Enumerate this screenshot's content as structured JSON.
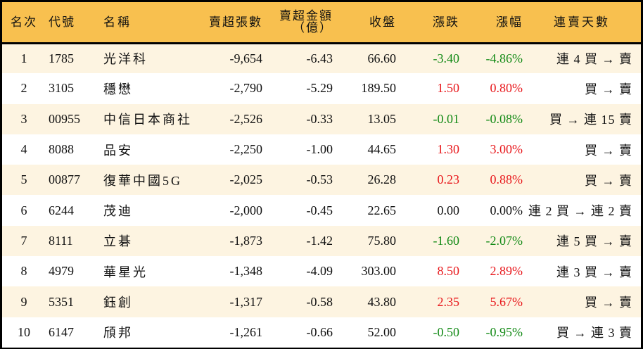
{
  "colors": {
    "header_bg": "#f8c04f",
    "row_alt_bg": "#fdf4e1",
    "row_bg": "#ffffff",
    "up": "#e8171b",
    "down": "#138a16",
    "border": "#000000"
  },
  "table": {
    "headers": {
      "rank": "名次",
      "code": "代號",
      "name": "名稱",
      "net_sell_lots": "賣超張數",
      "net_sell_amount_line1": "賣超金額",
      "net_sell_amount_line2": "（億）",
      "close": "收盤",
      "change": "漲跌",
      "change_pct": "漲幅",
      "streak": "連賣天數"
    },
    "rows": [
      {
        "rank": "1",
        "code": "1785",
        "name": "光洋科",
        "lots": "-9,654",
        "amount": "-6.43",
        "close": "66.60",
        "change": "-3.40",
        "pct": "-4.86%",
        "dir": "down",
        "streak": "連 4 買 → 賣"
      },
      {
        "rank": "2",
        "code": "3105",
        "name": "穩懋",
        "lots": "-2,790",
        "amount": "-5.29",
        "close": "189.50",
        "change": "1.50",
        "pct": "0.80%",
        "dir": "up",
        "streak": "買 → 賣"
      },
      {
        "rank": "3",
        "code": "00955",
        "name": "中信日本商社",
        "lots": "-2,526",
        "amount": "-0.33",
        "close": "13.05",
        "change": "-0.01",
        "pct": "-0.08%",
        "dir": "down",
        "streak": "買 → 連 15 賣"
      },
      {
        "rank": "4",
        "code": "8088",
        "name": "品安",
        "lots": "-2,250",
        "amount": "-1.00",
        "close": "44.65",
        "change": "1.30",
        "pct": "3.00%",
        "dir": "up",
        "streak": "買 → 賣"
      },
      {
        "rank": "5",
        "code": "00877",
        "name": "復華中國5G",
        "lots": "-2,025",
        "amount": "-0.53",
        "close": "26.28",
        "change": "0.23",
        "pct": "0.88%",
        "dir": "up",
        "streak": "買 → 賣"
      },
      {
        "rank": "6",
        "code": "6244",
        "name": "茂迪",
        "lots": "-2,000",
        "amount": "-0.45",
        "close": "22.65",
        "change": "0.00",
        "pct": "0.00%",
        "dir": "flat",
        "streak": "連 2 買 → 連 2 賣"
      },
      {
        "rank": "7",
        "code": "8111",
        "name": "立碁",
        "lots": "-1,873",
        "amount": "-1.42",
        "close": "75.80",
        "change": "-1.60",
        "pct": "-2.07%",
        "dir": "down",
        "streak": "連 5 買 → 賣"
      },
      {
        "rank": "8",
        "code": "4979",
        "name": "華星光",
        "lots": "-1,348",
        "amount": "-4.09",
        "close": "303.00",
        "change": "8.50",
        "pct": "2.89%",
        "dir": "up",
        "streak": "連 3 買 → 賣"
      },
      {
        "rank": "9",
        "code": "5351",
        "name": "鈺創",
        "lots": "-1,317",
        "amount": "-0.58",
        "close": "43.80",
        "change": "2.35",
        "pct": "5.67%",
        "dir": "up",
        "streak": "買 → 賣"
      },
      {
        "rank": "10",
        "code": "6147",
        "name": "頎邦",
        "lots": "-1,261",
        "amount": "-0.66",
        "close": "52.00",
        "change": "-0.50",
        "pct": "-0.95%",
        "dir": "down",
        "streak": "買 → 連 3 賣"
      }
    ]
  }
}
